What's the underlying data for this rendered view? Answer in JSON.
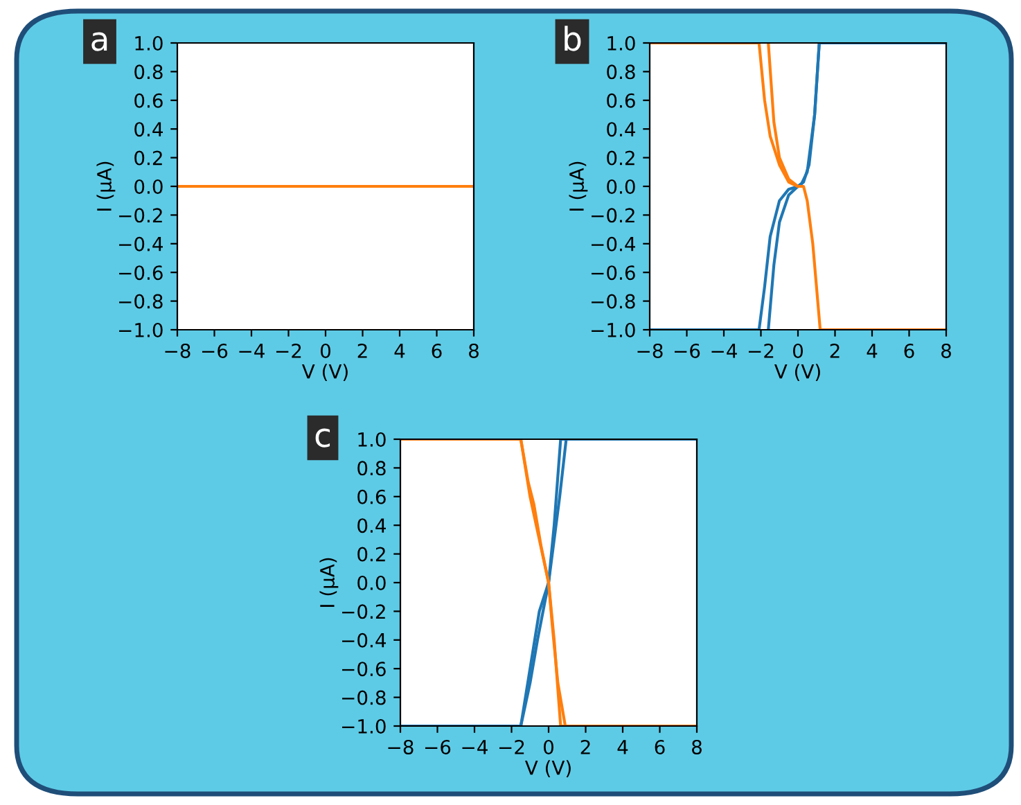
{
  "chart_data": [
    {
      "type": "line",
      "annotations": [
        "a"
      ],
      "xlabel": "V (V)",
      "ylabel": "I (μA)",
      "xlim": [
        -8,
        8
      ],
      "ylim": [
        -1.0,
        1.0
      ],
      "xticks": [
        {
          "value": -8,
          "label": "−8"
        },
        {
          "value": -6,
          "label": "−6"
        },
        {
          "value": -4,
          "label": "−4"
        },
        {
          "value": -2,
          "label": "−2"
        },
        0,
        2,
        4,
        6,
        8
      ],
      "yticks": [
        {
          "value": -1.0,
          "label": "−1.0"
        },
        {
          "value": -0.8,
          "label": "−0.8"
        },
        {
          "value": -0.6,
          "label": "−0.6"
        },
        {
          "value": -0.4,
          "label": "−0.4"
        },
        {
          "value": -0.2,
          "label": "−0.2"
        },
        {
          "value": 0.0,
          "label": "0.0"
        },
        {
          "value": 0.2,
          "label": "0.2"
        },
        {
          "value": 0.4,
          "label": "0.4"
        },
        {
          "value": 0.6,
          "label": "0.6"
        },
        {
          "value": 0.8,
          "label": "0.8"
        },
        {
          "value": 1.0,
          "label": "1.0"
        }
      ],
      "grid": false,
      "series": [
        {
          "color": "#ff7f0e",
          "x": [
            -8,
            8
          ],
          "values": [
            0,
            0
          ]
        }
      ]
    },
    {
      "type": "line",
      "annotations": [
        "b"
      ],
      "xlabel": "V (V)",
      "ylabel": "I (μA)",
      "xlim": [
        -8,
        8
      ],
      "ylim": [
        -1.0,
        1.0
      ],
      "xticks": [
        {
          "value": -8,
          "label": "−8"
        },
        {
          "value": -6,
          "label": "−6"
        },
        {
          "value": -4,
          "label": "−4"
        },
        {
          "value": -2,
          "label": "−2"
        },
        0,
        2,
        4,
        6,
        8
      ],
      "yticks": [
        {
          "value": -1.0,
          "label": "−1.0"
        },
        {
          "value": -0.8,
          "label": "−0.8"
        },
        {
          "value": -0.6,
          "label": "−0.6"
        },
        {
          "value": -0.4,
          "label": "−0.4"
        },
        {
          "value": -0.2,
          "label": "−0.2"
        },
        {
          "value": 0.0,
          "label": "0.0"
        },
        {
          "value": 0.2,
          "label": "0.2"
        },
        {
          "value": 0.4,
          "label": "0.4"
        },
        {
          "value": 0.6,
          "label": "0.6"
        },
        {
          "value": 0.8,
          "label": "0.8"
        },
        {
          "value": 1.0,
          "label": "1.0"
        }
      ],
      "grid": false,
      "series": [
        {
          "color": "#1f77b4",
          "x": [
            -8,
            -2.1,
            -1.8,
            -1.5,
            -1.0,
            -0.5,
            0,
            0.3,
            0.6,
            0.9,
            1.15,
            8
          ],
          "values": [
            -1,
            -1,
            -0.7,
            -0.35,
            -0.1,
            -0.02,
            0,
            0.03,
            0.15,
            0.5,
            1,
            1
          ]
        },
        {
          "color": "#1f77b4",
          "x": [
            -1.6,
            -1.3,
            -1.0,
            -0.5,
            0,
            0.2,
            0.5,
            0.9,
            1.15
          ],
          "values": [
            -1,
            -0.55,
            -0.25,
            -0.06,
            0,
            0.02,
            0.1,
            0.5,
            1
          ]
        },
        {
          "color": "#ff7f0e",
          "x": [
            -8,
            -2.1,
            -1.8,
            -1.5,
            -1.0,
            -0.5,
            0,
            0.3,
            0.5,
            0.8,
            1.2,
            8
          ],
          "values": [
            1,
            1,
            0.6,
            0.35,
            0.15,
            0.03,
            0,
            0,
            -0.1,
            -0.4,
            -1,
            -1
          ]
        },
        {
          "color": "#ff7f0e",
          "x": [
            -1.6,
            -1.3,
            -1.0,
            -0.5,
            0
          ],
          "values": [
            1,
            0.45,
            0.2,
            0.05,
            0
          ]
        }
      ]
    },
    {
      "type": "line",
      "annotations": [
        "c"
      ],
      "xlabel": "V (V)",
      "ylabel": "I (μA)",
      "xlim": [
        -8,
        8
      ],
      "ylim": [
        -1.0,
        1.0
      ],
      "xticks": [
        {
          "value": -8,
          "label": "−8"
        },
        {
          "value": -6,
          "label": "−6"
        },
        {
          "value": -4,
          "label": "−4"
        },
        {
          "value": -2,
          "label": "−2"
        },
        0,
        2,
        4,
        6,
        8
      ],
      "yticks": [
        {
          "value": -1.0,
          "label": "−1.0"
        },
        {
          "value": -0.8,
          "label": "−0.8"
        },
        {
          "value": -0.6,
          "label": "−0.6"
        },
        {
          "value": -0.4,
          "label": "−0.4"
        },
        {
          "value": -0.2,
          "label": "−0.2"
        },
        {
          "value": 0.0,
          "label": "0.0"
        },
        {
          "value": 0.2,
          "label": "0.2"
        },
        {
          "value": 0.4,
          "label": "0.4"
        },
        {
          "value": 0.6,
          "label": "0.6"
        },
        {
          "value": 0.8,
          "label": "0.8"
        },
        {
          "value": 1.0,
          "label": "1.0"
        }
      ],
      "grid": false,
      "series": [
        {
          "color": "#1f77b4",
          "x": [
            -8,
            -1.5,
            -1.0,
            -0.5,
            0,
            0.3,
            0.65,
            8
          ],
          "values": [
            -1,
            -1,
            -0.6,
            -0.2,
            0,
            0.4,
            1,
            1
          ]
        },
        {
          "color": "#1f77b4",
          "x": [
            -1.5,
            -1.0,
            -0.6,
            0,
            0.3,
            0.6,
            0.95
          ],
          "values": [
            -1,
            -0.7,
            -0.4,
            0,
            0.3,
            0.6,
            1
          ]
        },
        {
          "color": "#ff7f0e",
          "x": [
            -8,
            -1.5,
            -1.1,
            -0.8,
            -0.4,
            0,
            0.3,
            0.65,
            8
          ],
          "values": [
            1,
            1,
            0.7,
            0.55,
            0.25,
            0,
            -0.4,
            -1,
            -1
          ]
        },
        {
          "color": "#ff7f0e",
          "x": [
            -1.5,
            -1.0,
            -0.5,
            0,
            0.2,
            0.5,
            0.9
          ],
          "values": [
            1,
            0.6,
            0.3,
            0,
            -0.3,
            -0.7,
            -1
          ]
        }
      ]
    }
  ]
}
